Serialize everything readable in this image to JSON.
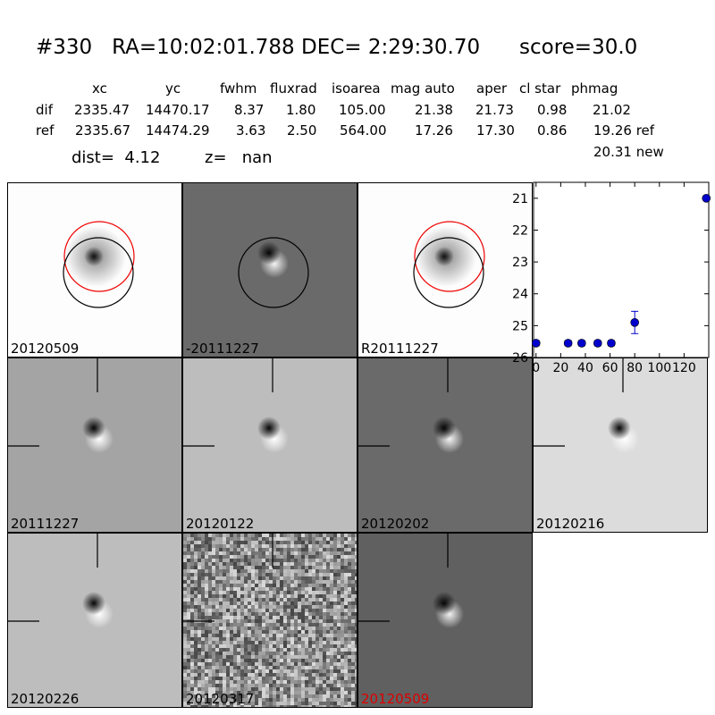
{
  "header": {
    "id": "#330",
    "coords": "RA=10:02:01.788 DEC= 2:29:30.70",
    "score": "score=30.0"
  },
  "table": {
    "columns": [
      "xc",
      "yc",
      "fwhm",
      "fluxrad",
      "isoarea",
      "mag auto",
      "aper",
      "cl star",
      "phmag"
    ],
    "rows": [
      {
        "label": "dif",
        "values": [
          "2335.47",
          "14470.17",
          "8.37",
          "1.80",
          "105.00",
          "21.38",
          "21.73",
          "0.98",
          "21.02"
        ]
      },
      {
        "label": "ref",
        "values": [
          "2335.67",
          "14474.29",
          "3.63",
          "2.50",
          "564.00",
          "17.26",
          "17.30",
          "0.86",
          "19.26 ref"
        ]
      }
    ],
    "extra": "20.31 new"
  },
  "info": {
    "dist": "dist=  4.12",
    "z": "z=   nan"
  },
  "panels": [
    {
      "label": "20120509",
      "label_color": "#000000",
      "style": "star",
      "circles": [
        "red",
        "black"
      ]
    },
    {
      "label": "-20111227",
      "label_color": "#000000",
      "style": "diff_dark",
      "circles": [
        "black"
      ]
    },
    {
      "label": "R20111227",
      "label_color": "#000000",
      "style": "star",
      "circles": [
        "red",
        "black"
      ]
    },
    {
      "label": "20111227",
      "label_color": "#000000",
      "style": "diff_mid",
      "crosshair": true
    },
    {
      "label": "20120122",
      "label_color": "#000000",
      "style": "diff_light",
      "crosshair": true
    },
    {
      "label": "20120202",
      "label_color": "#000000",
      "style": "diff_dark",
      "crosshair": true
    },
    {
      "label": "20120216",
      "label_color": "#000000",
      "style": "diff_white",
      "crosshair": true
    },
    {
      "label": "20120226",
      "label_color": "#000000",
      "style": "diff_light",
      "crosshair": true
    },
    {
      "label": "20120317",
      "label_color": "#000000",
      "style": "noise",
      "crosshair": true
    },
    {
      "label": "20120509",
      "label_color": "#dd0000",
      "style": "diff_dark2",
      "crosshair": true
    }
  ],
  "chart_data": {
    "type": "scatter",
    "title": "",
    "xlabel": "",
    "ylabel": "",
    "xlim": [
      -2,
      140
    ],
    "ylim": [
      26,
      20.5
    ],
    "yaxis_inverted": true,
    "xticks": [
      0,
      20,
      40,
      60,
      80,
      100,
      120
    ],
    "yticks": [
      21,
      22,
      23,
      24,
      25,
      26
    ],
    "marker_color": "#0000cc",
    "series": [
      {
        "x": [
          0,
          26,
          37,
          50,
          61,
          80,
          138
        ],
        "y": [
          25.55,
          25.55,
          25.55,
          25.55,
          25.55,
          24.9,
          21.0
        ],
        "yerr": [
          0.08,
          0.08,
          0.08,
          0.08,
          0.08,
          0.35,
          0.05
        ]
      }
    ]
  }
}
